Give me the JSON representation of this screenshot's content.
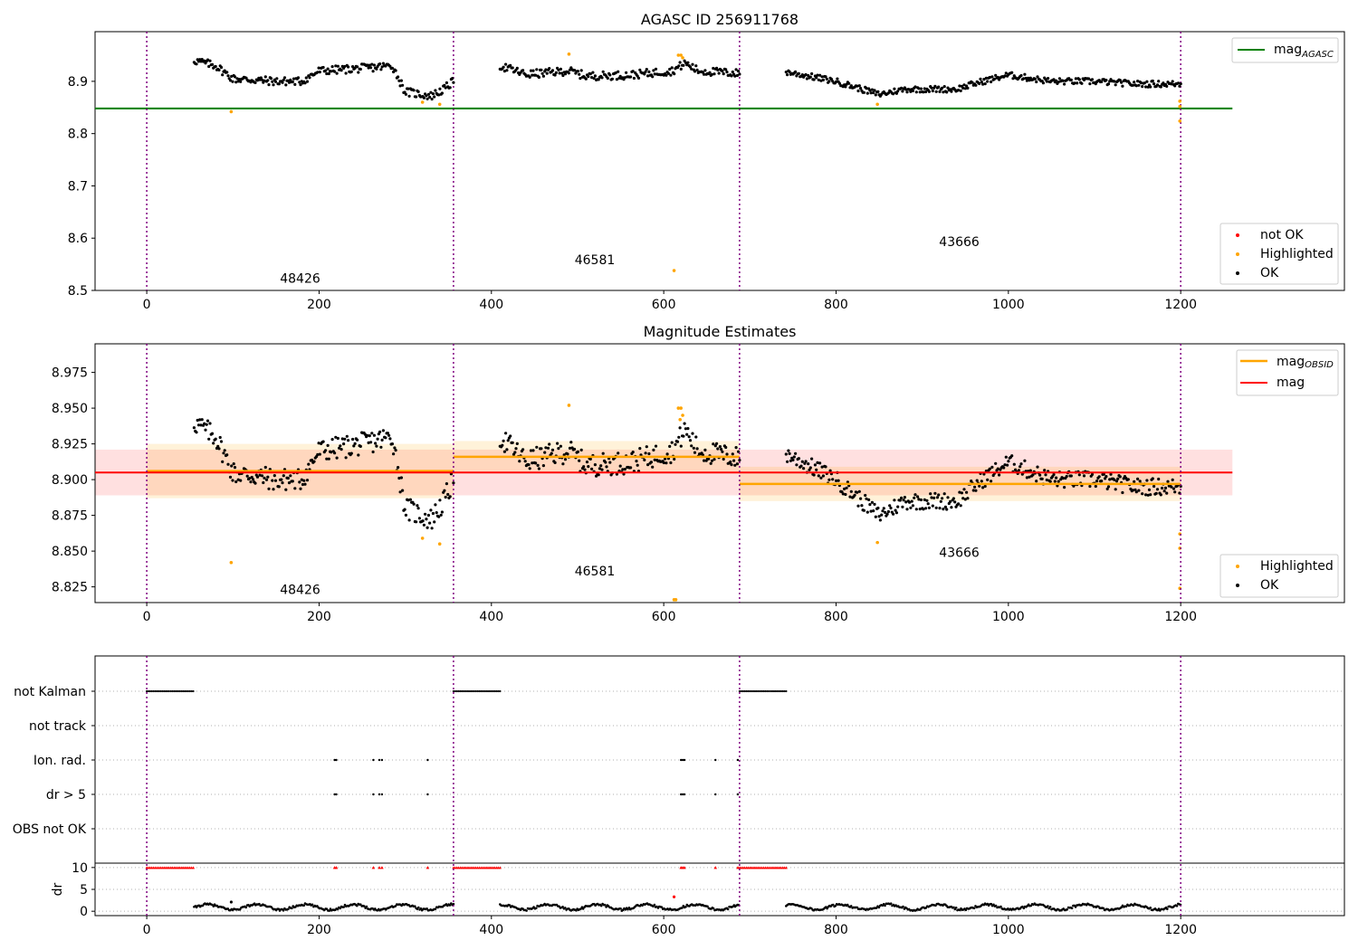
{
  "chart_data": [
    {
      "type": "scatter",
      "title": "AGASC ID 256911768",
      "xlim": [
        -60,
        1390
      ],
      "ylim": [
        8.5,
        8.995
      ],
      "xticks": [
        0,
        200,
        400,
        600,
        800,
        1000,
        1200
      ],
      "yticks": [
        8.5,
        8.6,
        8.7,
        8.8,
        8.9
      ],
      "xlabel": "",
      "ylabel": "",
      "obs_boundaries": [
        0,
        356,
        688,
        1200
      ],
      "obs_labels": [
        {
          "text": "48426",
          "x": 178,
          "y": 8.515
        },
        {
          "text": "46581",
          "x": 520,
          "y": 8.55
        },
        {
          "text": "43666",
          "x": 943,
          "y": 8.585
        }
      ],
      "hlines": [
        {
          "name": "mag_AGASC",
          "y": 8.848,
          "color": "#008000"
        }
      ],
      "series": [
        {
          "name": "not OK",
          "color": "#ff0000",
          "n": 0
        },
        {
          "name": "Highlighted",
          "color": "#ffa500",
          "points": [
            [
              98,
              8.842
            ],
            [
              320,
              8.86
            ],
            [
              340,
              8.856
            ],
            [
              490,
              8.952
            ],
            [
              612,
              8.538
            ],
            [
              617,
              8.95
            ],
            [
              620,
              8.95
            ],
            [
              622,
              8.945
            ],
            [
              848,
              8.856
            ],
            [
              1199,
              8.862
            ],
            [
              1199,
              8.852
            ],
            [
              1199,
              8.824
            ]
          ]
        },
        {
          "name": "OK",
          "color": "#000000",
          "segments": [
            {
              "x": [
                55,
                356
              ],
              "knots": [
                [
                  55,
                  8.94
                ],
                [
                  80,
                  8.93
                ],
                [
                  100,
                  8.905
                ],
                [
                  150,
                  8.9
                ],
                [
                  180,
                  8.9
                ],
                [
                  200,
                  8.92
                ],
                [
                  250,
                  8.925
                ],
                [
                  285,
                  8.93
                ],
                [
                  300,
                  8.88
                ],
                [
                  330,
                  8.872
                ],
                [
                  345,
                  8.885
                ],
                [
                  356,
                  8.9
                ]
              ],
              "spread": 0.008,
              "n": 230
            },
            {
              "x": [
                410,
                688
              ],
              "knots": [
                [
                  410,
                  8.93
                ],
                [
                  440,
                  8.913
                ],
                [
                  490,
                  8.92
                ],
                [
                  510,
                  8.91
                ],
                [
                  560,
                  8.912
                ],
                [
                  610,
                  8.92
                ],
                [
                  625,
                  8.935
                ],
                [
                  640,
                  8.92
                ],
                [
                  688,
                  8.915
                ]
              ],
              "spread": 0.008,
              "n": 210
            },
            {
              "x": [
                742,
                1200
              ],
              "knots": [
                [
                  742,
                  8.918
                ],
                [
                  800,
                  8.9
                ],
                [
                  850,
                  8.875
                ],
                [
                  880,
                  8.885
                ],
                [
                  940,
                  8.885
                ],
                [
                  970,
                  8.9
                ],
                [
                  1000,
                  8.912
                ],
                [
                  1050,
                  8.9
                ],
                [
                  1100,
                  8.9
                ],
                [
                  1150,
                  8.895
                ],
                [
                  1200,
                  8.895
                ]
              ],
              "spread": 0.006,
              "n": 340
            }
          ]
        }
      ],
      "legends": [
        {
          "position": "upper-right",
          "entries": [
            "mag_AGASC"
          ]
        },
        {
          "position": "lower-right",
          "entries": [
            "not OK",
            "Highlighted",
            "OK"
          ]
        }
      ],
      "legend_text": {
        "mag_main": "mag",
        "mag_sub": "AGASC",
        "not_ok": "not OK",
        "highlighted": "Highlighted",
        "ok": "OK"
      }
    },
    {
      "type": "scatter",
      "title": "Magnitude Estimates",
      "xlim": [
        -60,
        1390
      ],
      "ylim": [
        8.814,
        8.995
      ],
      "xticks": [
        0,
        200,
        400,
        600,
        800,
        1000,
        1200
      ],
      "yticks": [
        8.825,
        8.85,
        8.875,
        8.9,
        8.925,
        8.95,
        8.975
      ],
      "obs_boundaries": [
        0,
        356,
        688,
        1200
      ],
      "obs_labels": [
        {
          "text": "48426",
          "x": 178,
          "y": 8.82
        },
        {
          "text": "46581",
          "x": 520,
          "y": 8.833
        },
        {
          "text": "43666",
          "x": 943,
          "y": 8.846
        }
      ],
      "mag": {
        "value": 8.905,
        "lo": 8.889,
        "hi": 8.921,
        "x": [
          -60,
          1260
        ],
        "color": "#ff0000"
      },
      "mag_obsid": [
        {
          "x": [
            0,
            356
          ],
          "value": 8.906,
          "lo": 8.887,
          "hi": 8.925
        },
        {
          "x": [
            356,
            688
          ],
          "value": 8.916,
          "lo": 8.905,
          "hi": 8.927
        },
        {
          "x": [
            688,
            1200
          ],
          "value": 8.897,
          "lo": 8.885,
          "hi": 8.909
        }
      ],
      "series": [
        {
          "name": "Highlighted",
          "color": "#ffa500",
          "points": [
            [
              98,
              8.842
            ],
            [
              320,
              8.859
            ],
            [
              340,
              8.855
            ],
            [
              490,
              8.952
            ],
            [
              612,
              8.816
            ],
            [
              614,
              8.816
            ],
            [
              617,
              8.95
            ],
            [
              620,
              8.95
            ],
            [
              619,
              8.942
            ],
            [
              622,
              8.945
            ],
            [
              848,
              8.856
            ],
            [
              1199,
              8.862
            ],
            [
              1199,
              8.852
            ],
            [
              1199,
              8.824
            ]
          ]
        },
        {
          "name": "OK",
          "color": "#000000",
          "segments": [
            {
              "x": [
                55,
                356
              ],
              "knots": [
                [
                  55,
                  8.94
                ],
                [
                  80,
                  8.93
                ],
                [
                  100,
                  8.905
                ],
                [
                  150,
                  8.9
                ],
                [
                  180,
                  8.9
                ],
                [
                  200,
                  8.92
                ],
                [
                  250,
                  8.925
                ],
                [
                  285,
                  8.93
                ],
                [
                  300,
                  8.88
                ],
                [
                  330,
                  8.872
                ],
                [
                  345,
                  8.885
                ],
                [
                  356,
                  8.9
                ]
              ],
              "spread": 0.008,
              "n": 230
            },
            {
              "x": [
                410,
                688
              ],
              "knots": [
                [
                  410,
                  8.93
                ],
                [
                  440,
                  8.913
                ],
                [
                  490,
                  8.92
                ],
                [
                  510,
                  8.91
                ],
                [
                  560,
                  8.912
                ],
                [
                  610,
                  8.92
                ],
                [
                  625,
                  8.935
                ],
                [
                  640,
                  8.92
                ],
                [
                  688,
                  8.915
                ]
              ],
              "spread": 0.008,
              "n": 210
            },
            {
              "x": [
                742,
                1200
              ],
              "knots": [
                [
                  742,
                  8.918
                ],
                [
                  800,
                  8.9
                ],
                [
                  850,
                  8.875
                ],
                [
                  880,
                  8.885
                ],
                [
                  940,
                  8.885
                ],
                [
                  970,
                  8.9
                ],
                [
                  1000,
                  8.912
                ],
                [
                  1050,
                  8.9
                ],
                [
                  1100,
                  8.9
                ],
                [
                  1150,
                  8.895
                ],
                [
                  1200,
                  8.895
                ]
              ],
              "spread": 0.006,
              "n": 340
            }
          ]
        }
      ],
      "legends": [
        {
          "position": "upper-right",
          "entries": [
            "mag_OBSID",
            "mag"
          ]
        },
        {
          "position": "lower-right",
          "entries": [
            "Highlighted",
            "OK"
          ]
        }
      ],
      "legend_text": {
        "mag_obsid_main": "mag",
        "mag_obsid_sub": "OBSID",
        "mag": "mag",
        "highlighted": "Highlighted",
        "ok": "OK"
      }
    },
    {
      "type": "scatter",
      "title": "",
      "xlim": [
        -60,
        1390
      ],
      "xticks": [
        0,
        200,
        400,
        600,
        800,
        1000,
        1200
      ],
      "obs_boundaries": [
        0,
        356,
        688,
        1200
      ],
      "flag_rows": [
        "not Kalman",
        "not track",
        "Ion. rad.",
        "dr > 5",
        "OBS not OK"
      ],
      "flags": {
        "not Kalman": [
          [
            0,
            55
          ],
          [
            356,
            410
          ],
          [
            688,
            742
          ]
        ],
        "Ion. rad.": [
          218,
          220,
          263,
          270,
          273,
          326,
          620,
          622,
          624,
          660,
          686
        ],
        "dr > 5": [
          218,
          220,
          263,
          270,
          273,
          326,
          620,
          622,
          624,
          660,
          686
        ]
      },
      "dr": {
        "ylabel": "dr",
        "ylim": [
          -1,
          11
        ],
        "yticks": [
          0,
          5,
          10
        ],
        "clipped_ranges": [
          [
            0,
            55
          ],
          [
            356,
            410
          ],
          [
            688,
            742
          ]
        ],
        "clipped_singles": [
          218,
          220,
          263,
          270,
          273,
          326,
          620,
          622,
          624,
          660,
          686
        ],
        "red_point": [
          612,
          3.3
        ],
        "black_outlier": [
          98,
          2.1
        ],
        "segments": [
          [
            55,
            356
          ],
          [
            410,
            688
          ],
          [
            742,
            1200
          ]
        ]
      }
    }
  ]
}
